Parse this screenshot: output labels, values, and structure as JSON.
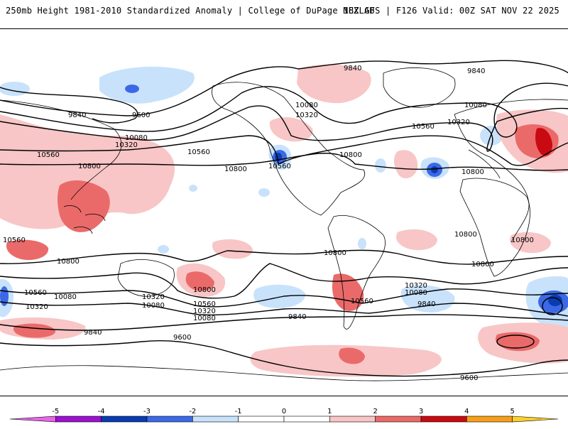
{
  "header": {
    "left_title": "250mb Height 1981-2010 Standardized Anomaly | College of DuPage NEXLAB",
    "right_title": "18Z GFS | F126 Valid: 00Z SAT NOV 22 2025"
  },
  "contour_labels": [
    "9840",
    "9600",
    "9840",
    "10080",
    "10320",
    "10560",
    "10800",
    "10080",
    "10320",
    "10560",
    "10800",
    "10560",
    "10800",
    "10560",
    "10800",
    "10320",
    "10080",
    "9840",
    "10080",
    "10320",
    "10560",
    "10800",
    "10800",
    "10800",
    "10560",
    "10320",
    "10080",
    "9840",
    "10560",
    "10320",
    "10080",
    "9840",
    "10800",
    "10560",
    "10800",
    "10800",
    "10320",
    "10080",
    "9840",
    "9600",
    "9600"
  ],
  "colorbar": {
    "ticks": [
      "-5",
      "-4",
      "-3",
      "-2",
      "-1",
      "0",
      "1",
      "2",
      "3",
      "4",
      "5"
    ],
    "colors": [
      "#e766e7",
      "#9b12cf",
      "#0a3bb0",
      "#3b69e6",
      "#c8e2fb",
      "#ffffff",
      "#ffffff",
      "#f8c6c6",
      "#ea6a6a",
      "#c90a12",
      "#f6a018",
      "#ffd02a"
    ]
  }
}
